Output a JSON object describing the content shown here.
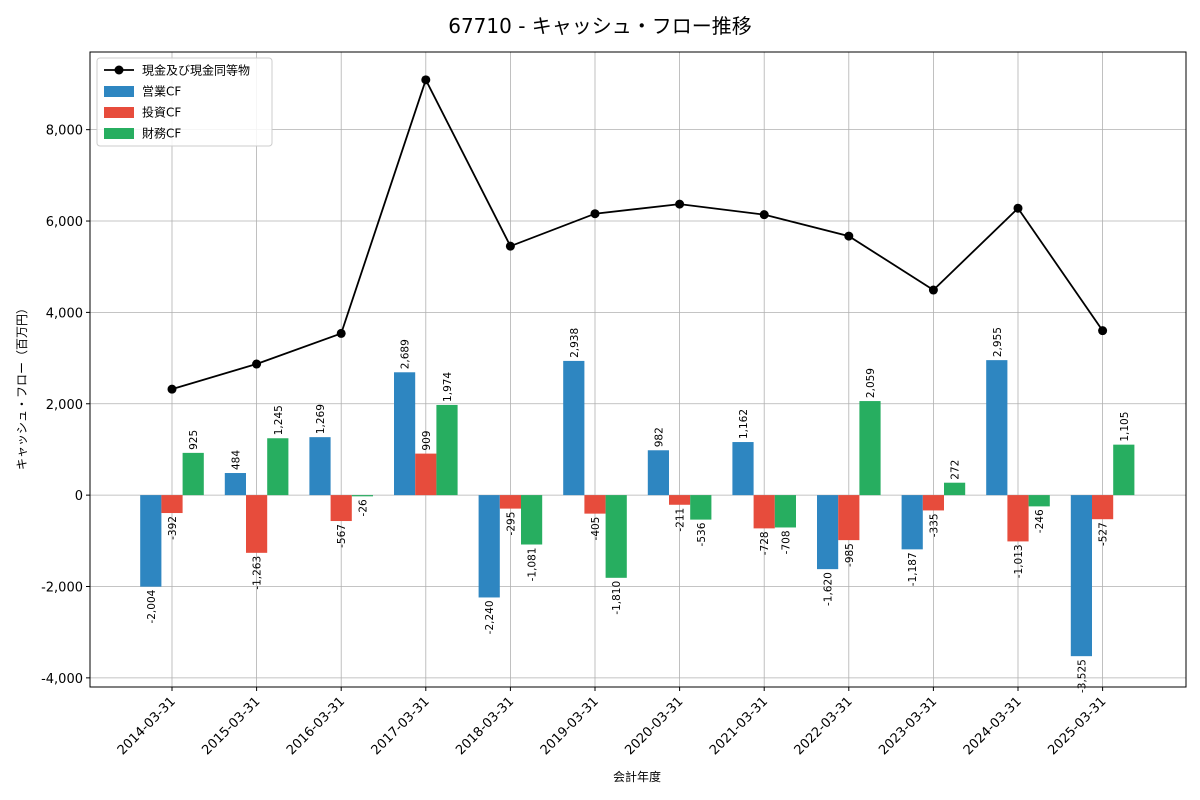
{
  "chart_data": {
    "type": "bar",
    "title": "67710 - キャッシュ・フロー推移",
    "xlabel": "会計年度",
    "ylabel": "キャッシュ・フロー（百万円）",
    "categories": [
      "2014-03-31",
      "2015-03-31",
      "2016-03-31",
      "2017-03-31",
      "2018-03-31",
      "2019-03-31",
      "2020-03-31",
      "2021-03-31",
      "2022-03-31",
      "2023-03-31",
      "2024-03-31",
      "2025-03-31"
    ],
    "ylim": [
      -4200,
      9700
    ],
    "yticks": [
      -4000,
      -2000,
      0,
      2000,
      4000,
      6000,
      8000
    ],
    "ytick_labels": [
      "-4,000",
      "-2,000",
      "0",
      "2,000",
      "4,000",
      "6,000",
      "8,000"
    ],
    "grid": true,
    "legend_position": "top-left",
    "series": [
      {
        "name": "営業CF",
        "type": "bar",
        "color": "#2e86c1",
        "values": [
          -2004,
          484,
          1269,
          2689,
          -2240,
          2938,
          982,
          1162,
          -1620,
          -1187,
          2955,
          -3525
        ],
        "labels": [
          "-2,004",
          "484",
          "1,269",
          "2,689",
          "-2,240",
          "2,938",
          "982",
          "1,162",
          "-1,620",
          "-1,187",
          "2,955",
          "-3,525"
        ]
      },
      {
        "name": "投資CF",
        "type": "bar",
        "color": "#e74c3c",
        "values": [
          -392,
          -1263,
          -567,
          909,
          -295,
          -405,
          -211,
          -728,
          -985,
          -335,
          -1013,
          -527
        ],
        "labels": [
          "-392",
          "-1,263",
          "-567",
          "909",
          "-295",
          "-405",
          "-211",
          "-728",
          "-985",
          "-335",
          "-1,013",
          "-527"
        ]
      },
      {
        "name": "財務CF",
        "type": "bar",
        "color": "#27ae60",
        "values": [
          925,
          1245,
          -26,
          1974,
          -1081,
          -1810,
          -536,
          -708,
          2059,
          272,
          -246,
          1105
        ],
        "labels": [
          "925",
          "1,245",
          "-26",
          "1,974",
          "-1,081",
          "-1,810",
          "-536",
          "-708",
          "2,059",
          "272",
          "-246",
          "1,105"
        ]
      },
      {
        "name": "現金及び現金同等物",
        "type": "line",
        "color": "#000000",
        "values": [
          2320,
          2870,
          3540,
          9090,
          5450,
          6160,
          6370,
          6140,
          5670,
          4490,
          6280,
          3600
        ]
      }
    ]
  }
}
